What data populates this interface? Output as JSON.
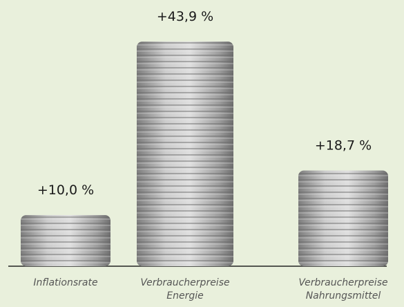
{
  "chart_data": {
    "type": "bar",
    "categories": [
      "Inflationsrate",
      "Verbraucherpreise Energie",
      "Verbraucherpreise Nahrungsmittel"
    ],
    "values": [
      10.0,
      43.9,
      18.7
    ],
    "value_labels": [
      "+10,0 %",
      "+43,9 %",
      "+18,7 %"
    ],
    "color": "#a9a9a9"
  }
}
